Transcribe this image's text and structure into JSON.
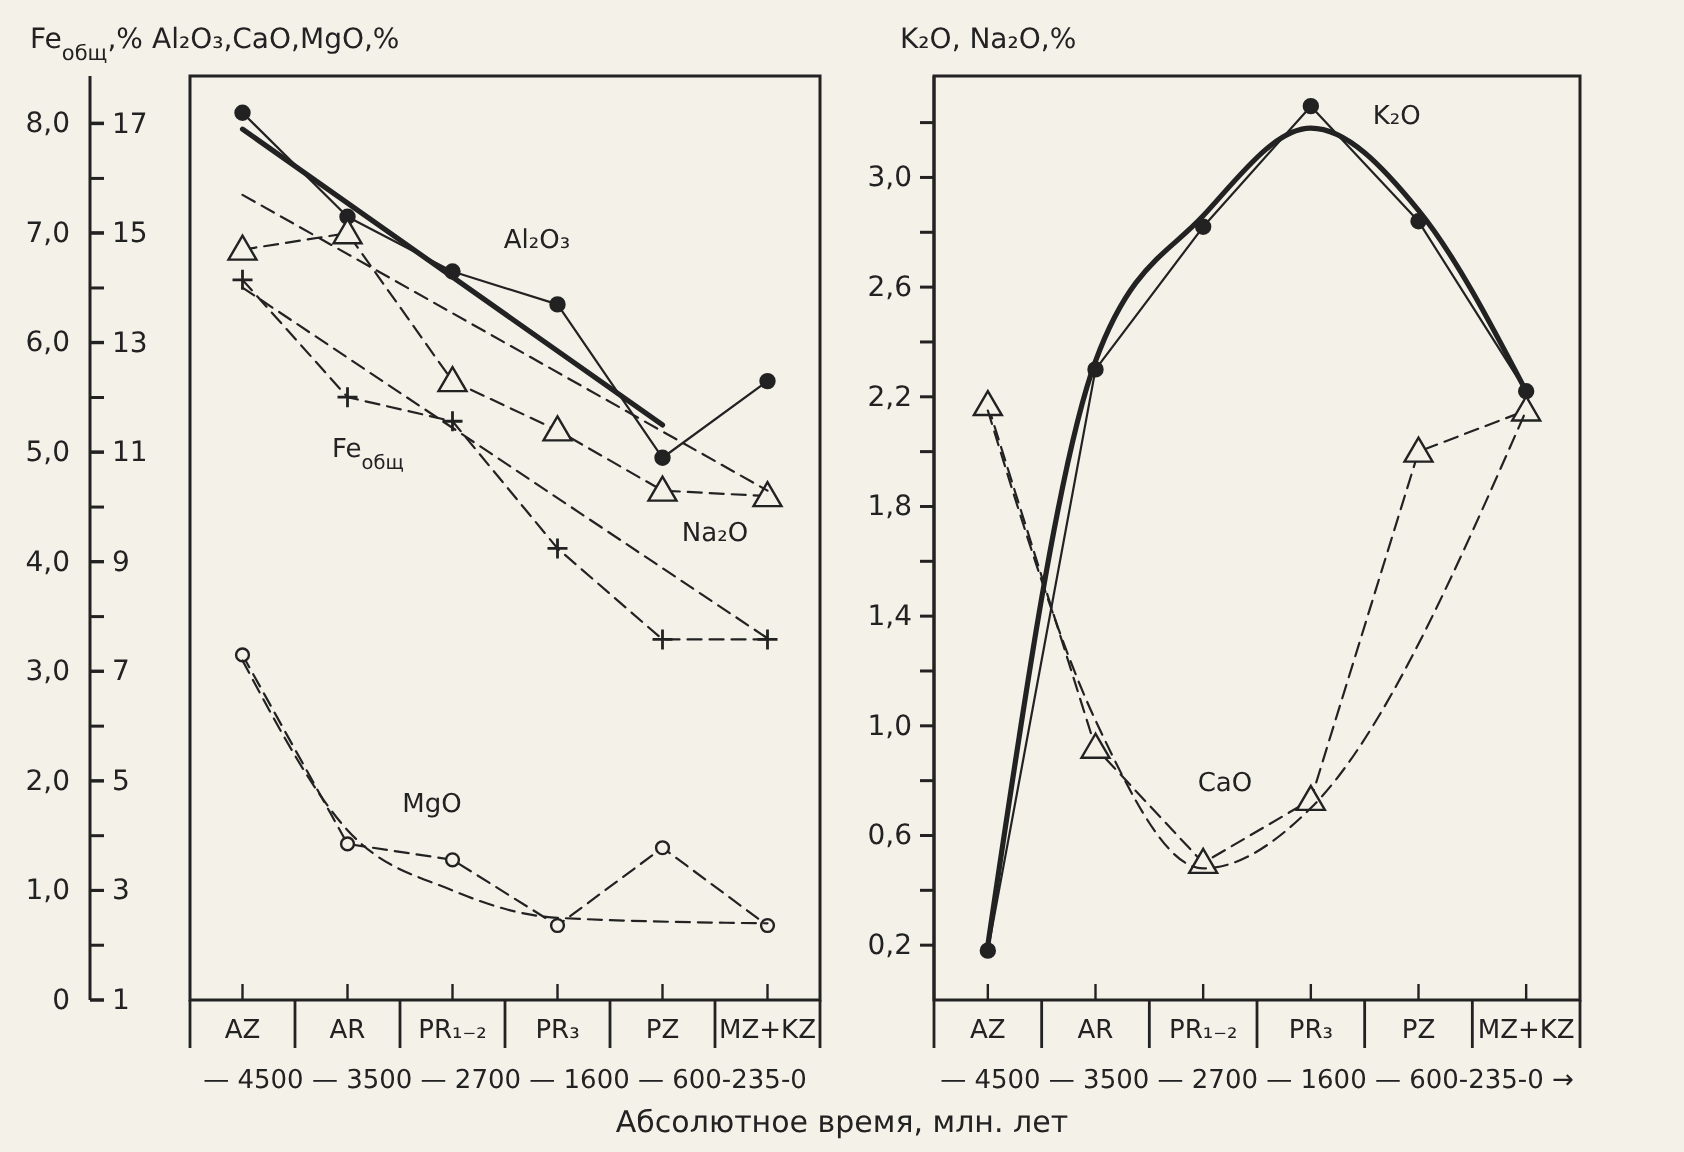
{
  "chart_data": [
    {
      "type": "line",
      "categories": [
        "AZ",
        "AR",
        "PR₁₋₂",
        "PR₃",
        "PZ",
        "MZ+KZ"
      ],
      "ylabel": "Fe$_{общ}$,%",
      "y2label": "Al₂O₃,CaO,MgO,%",
      "xlabel": "Абсолютное время, млн. лет",
      "ylim": [
        0,
        8.43
      ],
      "yticks": [
        0,
        {
          "value": 1,
          "label": "1,0"
        },
        {
          "value": 2,
          "label": "2,0"
        },
        {
          "value": 3,
          "label": "3,0"
        },
        {
          "value": 4,
          "label": "4,0"
        },
        {
          "value": 5,
          "label": "5,0"
        },
        {
          "value": 6,
          "label": "6,0"
        },
        {
          "value": 7,
          "label": "7,0"
        },
        {
          "value": 8,
          "label": "8,0"
        }
      ],
      "y2lim": [
        1,
        17.87
      ],
      "y2ticks": [
        1,
        3,
        5,
        7,
        9,
        11,
        13,
        15,
        17
      ],
      "grid": false,
      "legend": false,
      "annotations": [
        "— 4500 — 3500 — 2700 — 1600 — 600-235-0"
      ],
      "series": [
        {
          "name": "Al₂O₃",
          "color": "#222222",
          "axis": "y2",
          "values": [
            17.2,
            15.3,
            14.3,
            13.7,
            10.9,
            12.3
          ],
          "marker": "circle",
          "line_style": "solid"
        },
        {
          "color": "#222222",
          "axis": "y2",
          "x": [
            "AZ",
            "PZ"
          ],
          "values": [
            16.9,
            11.5
          ],
          "marker": "none",
          "line_style": "solid"
        },
        {
          "name": "Na₂O",
          "color": "#222222",
          "axis": "y2",
          "values": [
            14.7,
            15.0,
            12.3,
            11.4,
            10.3,
            10.2
          ],
          "marker": "triangle",
          "line_style": "dashed"
        },
        {
          "color": "#222222",
          "axis": "y2",
          "x": [
            "AZ",
            "MZ+KZ"
          ],
          "values": [
            15.7,
            10.3
          ],
          "marker": "none",
          "line_style": "dashed"
        },
        {
          "name": "Fe$_{общ}$",
          "color": "#222222",
          "values": [
            6.57,
            5.5,
            5.28,
            4.12,
            3.29,
            3.29
          ],
          "marker": "cross",
          "line_style": "dashed"
        },
        {
          "color": "#222222",
          "x": [
            "AZ",
            "MZ+KZ"
          ],
          "values": [
            6.5,
            3.3
          ],
          "marker": "none",
          "line_style": "dashed"
        },
        {
          "name": "MgO",
          "color": "#222222",
          "axis": "y2",
          "values": [
            7.3,
            3.85,
            3.56,
            2.36,
            3.78,
            2.36
          ],
          "marker": "circle",
          "line_style": "dashed"
        },
        {
          "color": "#222222",
          "axis": "y2",
          "values": [
            7.2,
            4.1,
            3.0,
            2.5,
            null,
            2.4
          ],
          "marker": "none",
          "line_style": "dashed"
        }
      ]
    },
    {
      "type": "line",
      "categories": [
        "AZ",
        "AR",
        "PR₁₋₂",
        "PR₃",
        "PZ",
        "MZ+KZ"
      ],
      "ylabel": "K₂O, Na₂O,%",
      "ylim": [
        0,
        3.37
      ],
      "yticks": [
        {
          "value": 0.2,
          "label": "0,2"
        },
        {
          "value": 0.4,
          "label": null
        },
        {
          "value": 0.6,
          "label": "0,6"
        },
        {
          "value": 0.8,
          "label": null
        },
        {
          "value": 1.0,
          "label": "1,0"
        },
        {
          "value": 1.2,
          "label": null
        },
        {
          "value": 1.4,
          "label": "1,4"
        },
        {
          "value": 1.6,
          "label": null
        },
        {
          "value": 1.8,
          "label": "1,8"
        },
        {
          "value": 2.0,
          "label": null
        },
        {
          "value": 2.2,
          "label": "2,2"
        },
        {
          "value": 2.4,
          "label": null
        },
        {
          "value": 2.6,
          "label": "2,6"
        },
        {
          "value": 2.8,
          "label": null
        },
        {
          "value": 3.0,
          "label": "3,0"
        },
        {
          "value": 3.2,
          "label": null
        }
      ],
      "grid": false,
      "legend": false,
      "annotations": [
        "— 4500 — 3500 — 2700 — 1600 — 600-235-0 →"
      ],
      "series": [
        {
          "name": "K₂O",
          "color": "#222222",
          "values": [
            0.18,
            2.3,
            2.82,
            3.26,
            2.84,
            2.22
          ],
          "marker": "circle",
          "line_style": "solid"
        },
        {
          "color": "#222222",
          "values": [
            0.2,
            2.33,
            2.86,
            3.18,
            2.88,
            2.22
          ],
          "marker": "none",
          "line_style": "solid"
        },
        {
          "name": "CaO",
          "color": "#222222",
          "values": [
            2.17,
            0.92,
            0.5,
            0.73,
            2.0,
            2.15
          ],
          "marker": "triangle",
          "line_style": "dashed"
        },
        {
          "color": "#222222",
          "x": [
            "AZ",
            "AR",
            "PR₁₋₂",
            "PR₃",
            "MZ+KZ"
          ],
          "values": [
            2.15,
            1.02,
            0.48,
            0.7,
            2.15
          ],
          "marker": "none",
          "line_style": "dashed"
        }
      ]
    }
  ]
}
